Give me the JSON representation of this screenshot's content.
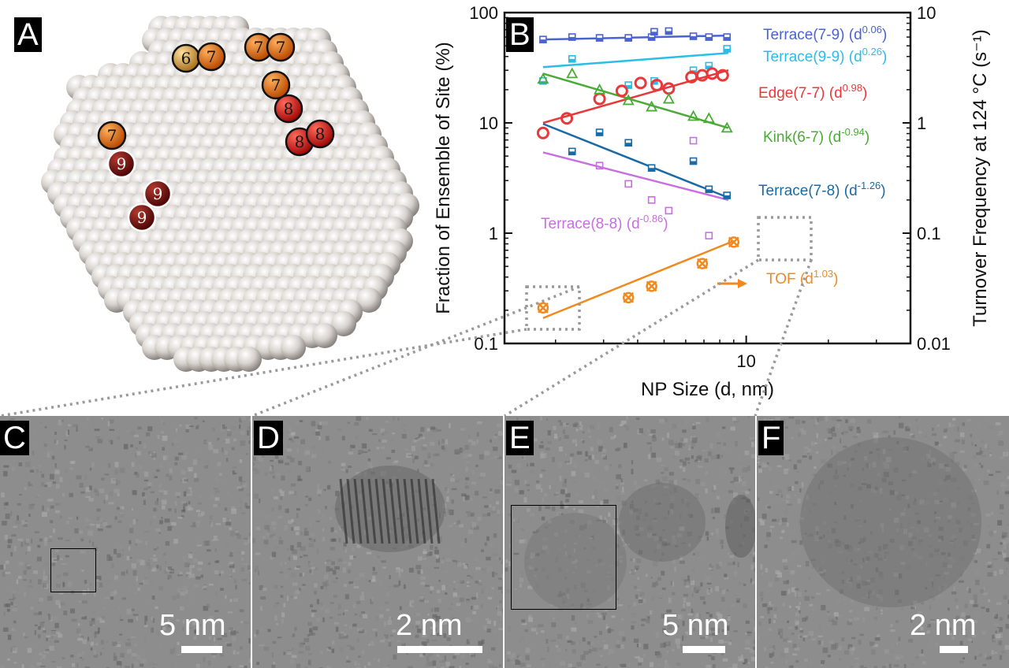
{
  "panels": {
    "a": {
      "label": "A",
      "site_numbers": [
        "6",
        "7",
        "7",
        "7",
        "7",
        "8",
        "8",
        "8",
        "7",
        "9",
        "9",
        "9"
      ]
    },
    "b": {
      "label": "B"
    },
    "c": {
      "label": "C",
      "scale": "5 nm"
    },
    "d": {
      "label": "D",
      "scale": "2 nm"
    },
    "e": {
      "label": "E",
      "scale": "5 nm"
    },
    "f": {
      "label": "F",
      "scale": "2 nm"
    }
  },
  "colors": {
    "terrace_7_9": "#4a63d0",
    "terrace_9_9": "#2bbde8",
    "edge_7_7": "#e8393a",
    "kink_6_7": "#4aab35",
    "terrace_7_8": "#1a6aa6",
    "terrace_8_8": "#c96ee0",
    "tof": "#f08a1f",
    "sphere": "#dedad6",
    "site6": "#d9a64c",
    "site7": "#e8781a",
    "site8": "#d82020",
    "site9": "#7a0d0d"
  },
  "chart_data": {
    "type": "scatter",
    "x_scale": "log",
    "y_scale": "log",
    "xlabel": "NP Size (d, nm)",
    "ylabel": "Fraction of Ensemble of Site (%)",
    "y2label": "Turnover Frequency at 124 °C (s⁻¹)",
    "x_ticks": [
      "10"
    ],
    "y_ticks": [
      "0.1",
      "1",
      "10",
      "100"
    ],
    "y2_ticks": [
      "0.01",
      "0.1",
      "1",
      "10"
    ],
    "ylim": [
      0.1,
      100
    ],
    "y2lim": [
      0.01,
      10
    ],
    "series": [
      {
        "name": "Terrace(7-9)",
        "exp": "0.06",
        "key": "terrace_7_9",
        "marker": "square-half",
        "x": [
          1.8,
          2.3,
          2.9,
          3.7,
          4.5,
          4.6,
          5.2,
          6.4,
          7.3,
          8.5
        ],
        "y": [
          57,
          60,
          59,
          59,
          60,
          67,
          68,
          61,
          60,
          60
        ],
        "fit": {
          "x": [
            1.8,
            8.6
          ],
          "y": [
            57,
            62
          ]
        }
      },
      {
        "name": "Terrace(9-9)",
        "exp": "0.26",
        "key": "terrace_9_9",
        "marker": "square-half",
        "x": [
          1.8,
          2.3,
          3.7,
          4.6,
          6.4,
          7.3,
          8.5
        ],
        "y": [
          24,
          38,
          22,
          24,
          30,
          33,
          47
        ],
        "fit": {
          "x": [
            1.8,
            8.6
          ],
          "y": [
            32,
            43
          ]
        }
      },
      {
        "name": "Edge(7-7)",
        "exp": "0.98",
        "key": "edge_7_7",
        "marker": "circle",
        "x": [
          1.8,
          2.2,
          2.9,
          3.5,
          4.1,
          4.7,
          5.2,
          6.3,
          6.9,
          7.5,
          8.2
        ],
        "y": [
          8.1,
          11,
          16.5,
          19.5,
          23,
          22,
          20.5,
          26,
          27,
          28,
          27
        ],
        "fit": {
          "x": [
            1.8,
            8.6
          ],
          "y": [
            10,
            30
          ]
        }
      },
      {
        "name": "Kink(6-7)",
        "exp": "-0.94",
        "key": "kink_6_7",
        "marker": "triangle",
        "x": [
          1.8,
          2.3,
          2.9,
          3.7,
          4.5,
          5.2,
          6.4,
          7.3,
          8.5
        ],
        "y": [
          25,
          28,
          20,
          16,
          14,
          16.5,
          11.5,
          11,
          9
        ],
        "fit": {
          "x": [
            1.8,
            8.6
          ],
          "y": [
            28,
            9
          ]
        }
      },
      {
        "name": "Terrace(7-8)",
        "exp": "-1.26",
        "key": "terrace_7_8",
        "marker": "square-half",
        "x": [
          2.3,
          2.9,
          3.7,
          4.5,
          6.4,
          7.3,
          8.5
        ],
        "y": [
          5.5,
          8.2,
          6.6,
          3.9,
          4.5,
          2.5,
          2.2
        ],
        "fit": {
          "x": [
            1.8,
            8.6
          ],
          "y": [
            9.8,
            2.1
          ]
        }
      },
      {
        "name": "Terrace(8-8)",
        "exp": "-0.86",
        "key": "terrace_8_8",
        "marker": "square-open",
        "x": [
          2.9,
          3.7,
          4.5,
          5.2,
          6.4,
          7.3
        ],
        "y": [
          4.1,
          2.8,
          2.0,
          1.6,
          6.9,
          0.95
        ],
        "fit": {
          "x": [
            1.8,
            8.6
          ],
          "y": [
            5.4,
            2.0
          ]
        }
      },
      {
        "name": "TOF",
        "exp": "1.03",
        "key": "tof",
        "marker": "circle-x",
        "axis": "right",
        "x": [
          1.8,
          3.7,
          4.5,
          6.9,
          9.0
        ],
        "y": [
          0.021,
          0.026,
          0.033,
          0.053,
          0.083
        ],
        "fit": {
          "x": [
            1.8,
            9.0
          ],
          "y": [
            0.017,
            0.085
          ]
        }
      }
    ]
  }
}
